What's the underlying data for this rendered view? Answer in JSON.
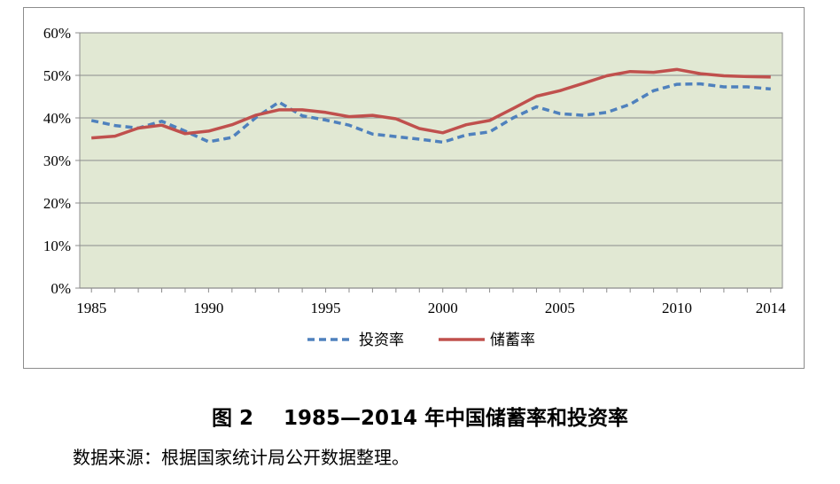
{
  "chart_data": {
    "type": "line",
    "x": [
      1985,
      1986,
      1987,
      1988,
      1989,
      1990,
      1991,
      1992,
      1993,
      1994,
      1995,
      1996,
      1997,
      1998,
      1999,
      2000,
      2001,
      2002,
      2003,
      2004,
      2005,
      2006,
      2007,
      2008,
      2009,
      2010,
      2011,
      2012,
      2013,
      2014
    ],
    "series": [
      {
        "name": "投资率",
        "color": "#4f81bd",
        "dash": true,
        "values": [
          39.4,
          38.2,
          37.6,
          39.2,
          36.9,
          34.4,
          35.4,
          40.0,
          43.7,
          40.5,
          39.5,
          38.3,
          36.2,
          35.6,
          35.0,
          34.3,
          36.0,
          36.7,
          40.0,
          42.6,
          41.0,
          40.6,
          41.3,
          43.2,
          46.4,
          47.9,
          48.0,
          47.3,
          47.3,
          46.8
        ]
      },
      {
        "name": "储蓄率",
        "color": "#c0504d",
        "dash": false,
        "values": [
          35.3,
          35.7,
          37.6,
          38.3,
          36.3,
          36.9,
          38.4,
          40.6,
          41.9,
          41.9,
          41.3,
          40.3,
          40.6,
          39.8,
          37.5,
          36.5,
          38.4,
          39.4,
          42.2,
          45.1,
          46.4,
          48.1,
          49.9,
          50.9,
          50.7,
          51.4,
          50.4,
          49.9,
          49.7,
          49.6
        ]
      }
    ],
    "xticks": [
      1985,
      1990,
      1995,
      2000,
      2005,
      2010,
      2014
    ],
    "yticks": [
      "0%",
      "10%",
      "20%",
      "30%",
      "40%",
      "50%",
      "60%"
    ],
    "ylim": [
      0,
      60
    ],
    "xlim": [
      1984.5,
      2014.5
    ],
    "grid": true,
    "legend_position": "bottom",
    "plot_background": "#e1e8d3"
  },
  "caption": {
    "label": "图 2",
    "text": "1985—2014 年中国储蓄率和投资率"
  },
  "source_note": "数据来源：根据国家统计局公开数据整理。"
}
